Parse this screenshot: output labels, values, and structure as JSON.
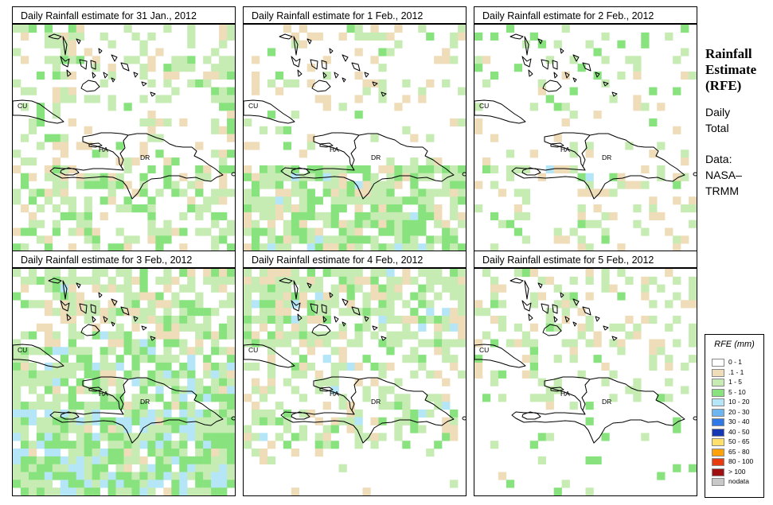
{
  "panels": [
    {
      "title": "Daily Rainfall estimate for  31 Jan., 2012",
      "seed": 31,
      "profile": "p1"
    },
    {
      "title": "Daily Rainfall estimate for  1 Feb., 2012",
      "seed": 101,
      "profile": "p2"
    },
    {
      "title": "Daily Rainfall estimate for  2 Feb., 2012",
      "seed": 202,
      "profile": "p3"
    },
    {
      "title": "Daily Rainfall estimate for  3 Feb., 2012",
      "seed": 303,
      "profile": "p4"
    },
    {
      "title": "Daily Rainfall estimate for  4 Feb., 2012",
      "seed": 404,
      "profile": "p5"
    },
    {
      "title": "Daily Rainfall estimate for  5 Feb., 2012",
      "seed": 505,
      "profile": "p6"
    }
  ],
  "map_labels": {
    "cuba": "CU",
    "haiti": "HA",
    "dr": "DR"
  },
  "side": {
    "title_lines": [
      "Rainfall",
      "Estimate",
      "(RFE)"
    ],
    "daily_lines": [
      "Daily",
      "Total"
    ],
    "source_lines": [
      "Data:",
      "NASA–",
      "TRMM"
    ]
  },
  "legend": {
    "title": "RFE (mm)",
    "items": [
      {
        "label": "0 - 1",
        "color": "#ffffff"
      },
      {
        "label": ".1 - 1",
        "color": "#efdcb8"
      },
      {
        "label": "1 - 5",
        "color": "#c6ecb4"
      },
      {
        "label": "5 - 10",
        "color": "#88e37e"
      },
      {
        "label": "10 - 20",
        "color": "#b4e6f8"
      },
      {
        "label": "20 - 30",
        "color": "#6cb6f2"
      },
      {
        "label": "30 - 40",
        "color": "#2f78e8"
      },
      {
        "label": "40 - 50",
        "color": "#1437b4"
      },
      {
        "label": "50 - 65",
        "color": "#ffe06a"
      },
      {
        "label": "65 - 80",
        "color": "#ffa20a"
      },
      {
        "label": "80 - 100",
        "color": "#e83c10"
      },
      {
        "label": "> 100",
        "color": "#a01010"
      },
      {
        "label": "nodata",
        "color": "#c8c8c8"
      }
    ]
  }
}
